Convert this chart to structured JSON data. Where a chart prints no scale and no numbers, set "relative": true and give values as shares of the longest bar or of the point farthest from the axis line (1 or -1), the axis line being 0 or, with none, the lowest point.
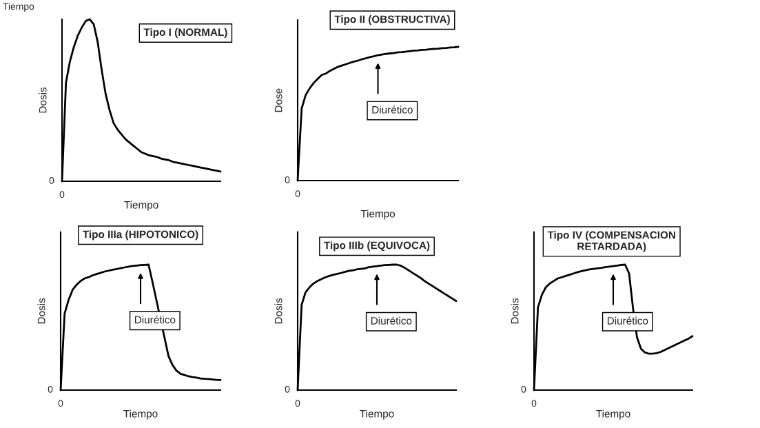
{
  "chart_data": [
    {
      "type": "line",
      "title": "Tipo I (NORMAL)",
      "xlabel": "Tiempo",
      "ylabel": "Dosis",
      "relative": true,
      "annotations": [
        "0",
        "0",
        "Tiempo"
      ],
      "categories": [
        null,
        null,
        null,
        null,
        null,
        null,
        null,
        null,
        null,
        null,
        null,
        null,
        null,
        null,
        null,
        null,
        null,
        null,
        null,
        null,
        null,
        null,
        null,
        null,
        null,
        null,
        null,
        null,
        null,
        null,
        null,
        null,
        null,
        null,
        null,
        null,
        null,
        null,
        null,
        null,
        null
      ],
      "series": [
        {
          "color": "#000000",
          "values": [
            0,
            0.61,
            0.74,
            0.83,
            0.9,
            0.95,
            0.99,
            1.0,
            0.97,
            0.86,
            0.69,
            0.54,
            0.44,
            0.36,
            0.32,
            0.29,
            0.26,
            0.24,
            0.22,
            0.2,
            0.18,
            0.17,
            0.16,
            0.155,
            0.15,
            0.14,
            0.135,
            0.13,
            0.12,
            0.115,
            0.11,
            0.105,
            0.1,
            0.095,
            0.09,
            0.085,
            0.08,
            0.075,
            0.07,
            0.065,
            0.06
          ]
        }
      ]
    },
    {
      "type": "line",
      "title": "Tipo II (OBSTRUCTIVA)",
      "xlabel": "Tiempo",
      "ylabel": "Dose",
      "relative": true,
      "annotations": [
        "0",
        "0",
        "Diurético"
      ],
      "categories": [
        null,
        null,
        null,
        null,
        null,
        null,
        null,
        null,
        null,
        null,
        null,
        null,
        null,
        null,
        null,
        null,
        null,
        null,
        null,
        null,
        null,
        null,
        null,
        null,
        null,
        null,
        null,
        null,
        null,
        null,
        null,
        null,
        null,
        null,
        null,
        null,
        null,
        null,
        null,
        null,
        null
      ],
      "series": [
        {
          "color": "#000000",
          "values": [
            0,
            0.54,
            0.64,
            0.69,
            0.73,
            0.76,
            0.79,
            0.8,
            0.82,
            0.835,
            0.85,
            0.86,
            0.87,
            0.88,
            0.89,
            0.897,
            0.907,
            0.915,
            0.923,
            0.93,
            0.938,
            0.943,
            0.948,
            0.951,
            0.954,
            0.959,
            0.961,
            0.964,
            0.969,
            0.972,
            0.974,
            0.977,
            0.979,
            0.982,
            0.985,
            0.987,
            0.99,
            0.992,
            0.995,
            0.997,
            1.0
          ]
        }
      ]
    },
    {
      "type": "line",
      "title": "Tipo IIIa (HIPOTONICO)",
      "xlabel": "Tiempo",
      "ylabel": "Dosis",
      "relative": true,
      "annotations": [
        "0",
        "0",
        "Diurético"
      ],
      "categories": [
        null,
        null,
        null,
        null,
        null,
        null,
        null,
        null,
        null,
        null,
        null,
        null,
        null,
        null,
        null,
        null,
        null,
        null,
        null,
        null,
        null,
        null,
        null,
        null,
        null,
        null,
        null,
        null,
        null,
        null,
        null,
        null,
        null,
        null,
        null,
        null,
        null,
        null,
        null,
        null,
        null
      ],
      "series": [
        {
          "color": "#000000",
          "values": [
            0,
            0.61,
            0.72,
            0.8,
            0.84,
            0.87,
            0.89,
            0.9,
            0.915,
            0.925,
            0.935,
            0.945,
            0.952,
            0.96,
            0.965,
            0.972,
            0.978,
            0.984,
            0.99,
            0.993,
            0.996,
            0.998,
            1.0,
            0.86,
            null,
            null,
            null,
            0.27,
            0.2,
            0.154,
            0.13,
            0.12,
            0.11,
            0.104,
            0.099,
            0.093,
            0.09,
            0.088,
            0.085,
            0.082,
            0.08
          ]
        }
      ]
    },
    {
      "type": "line",
      "title": "Tipo IIIb (EQUIVOCA)",
      "xlabel": "Tiempo",
      "ylabel": "Dosis",
      "relative": true,
      "annotations": [
        "0",
        "0",
        "Diurético"
      ],
      "categories": [
        null,
        null,
        null,
        null,
        null,
        null,
        null,
        null,
        null,
        null,
        null,
        null,
        null,
        null,
        null,
        null,
        null,
        null,
        null,
        null,
        null,
        null,
        null,
        null,
        null,
        null,
        null,
        null,
        null,
        null,
        null,
        null,
        null,
        null,
        null,
        null,
        null,
        null,
        null,
        null,
        null
      ],
      "series": [
        {
          "color": "#000000",
          "values": [
            0,
            0.68,
            0.78,
            0.82,
            0.85,
            0.87,
            0.885,
            0.9,
            0.91,
            0.92,
            0.926,
            0.934,
            0.943,
            0.951,
            0.955,
            0.963,
            0.967,
            0.971,
            0.98,
            0.984,
            0.988,
            0.992,
            0.996,
            0.998,
            1.0,
            1.0,
            0.992,
            0.975,
            0.955,
            0.935,
            0.915,
            0.895,
            0.87,
            0.85,
            0.83,
            0.81,
            0.79,
            0.77,
            0.75,
            0.73,
            0.71
          ]
        }
      ]
    },
    {
      "type": "line",
      "title": "Tipo IV (COMPENSACION\nRETARDADA)",
      "xlabel": "Tiempo",
      "ylabel": "Dosis",
      "relative": true,
      "annotations": [
        "0",
        "0",
        "Diurético"
      ],
      "categories": [
        null,
        null,
        null,
        null,
        null,
        null,
        null,
        null,
        null,
        null,
        null,
        null,
        null,
        null,
        null,
        null,
        null,
        null,
        null,
        null,
        null,
        null,
        null,
        null,
        null,
        null,
        null,
        null,
        null,
        null,
        null,
        null,
        null,
        null,
        null,
        null,
        null,
        null,
        null,
        null,
        null
      ],
      "series": [
        {
          "color": "#000000",
          "values": [
            0,
            0.66,
            0.76,
            0.82,
            0.85,
            0.87,
            0.89,
            0.9,
            0.91,
            0.92,
            0.93,
            0.94,
            0.948,
            0.955,
            0.962,
            0.967,
            0.971,
            0.975,
            0.98,
            0.984,
            0.988,
            0.992,
            0.998,
            1.0,
            0.93,
            0.65,
            0.42,
            0.33,
            0.3,
            0.29,
            0.29,
            0.295,
            0.305,
            0.32,
            0.335,
            0.35,
            0.365,
            0.38,
            0.395,
            0.41,
            0.43
          ]
        }
      ]
    }
  ]
}
